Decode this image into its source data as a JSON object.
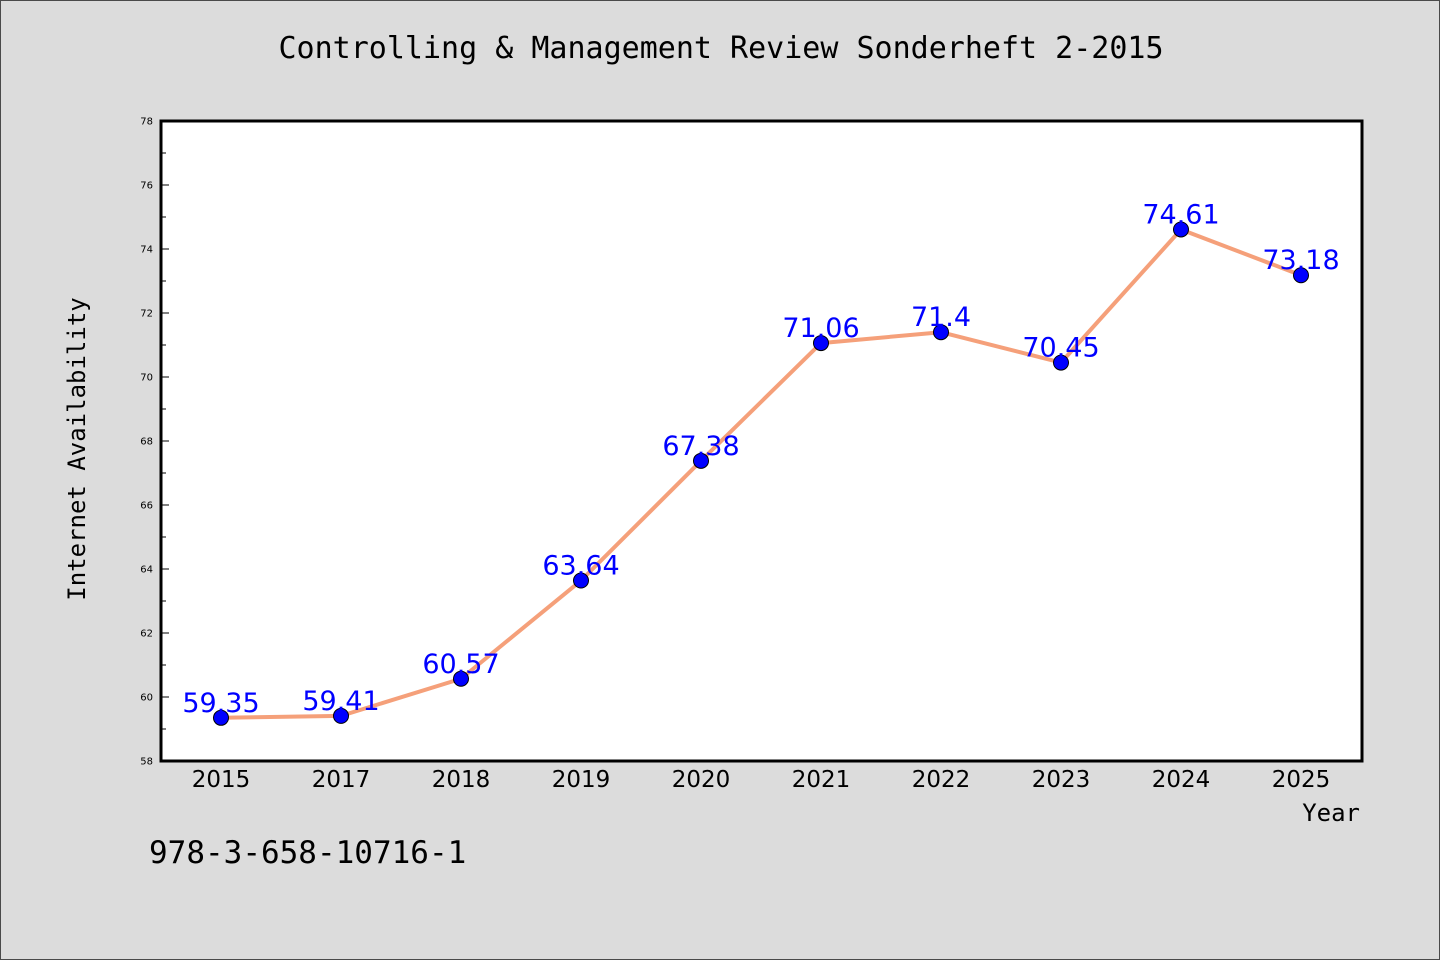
{
  "header": {
    "title": "Controlling & Management Review Sonderheft 2-2015"
  },
  "footer": {
    "isbn": "978-3-658-10716-1"
  },
  "chart_data": {
    "type": "line",
    "title": "Controlling & Management Review Sonderheft 2-2015",
    "xlabel": "Year",
    "ylabel": "Internet Availability",
    "categories": [
      "2015",
      "2017",
      "2018",
      "2019",
      "2020",
      "2021",
      "2022",
      "2023",
      "2024",
      "2025"
    ],
    "series": [
      {
        "values": [
          59.35,
          59.41,
          60.57,
          63.64,
          67.38,
          71.06,
          71.4,
          70.45,
          74.61,
          73.18
        ],
        "data_labels": [
          "59.35",
          "59.41",
          "60.57",
          "63.64",
          "67.38",
          "71.06",
          "71.4",
          "70.45",
          "74.61",
          "73.18"
        ],
        "line_color": "#f5a07a",
        "marker_color": "#0000ff"
      }
    ],
    "ylim": [
      58,
      78
    ],
    "yticks": [
      "58",
      "60",
      "62",
      "64",
      "66",
      "68",
      "70",
      "72",
      "74",
      "76",
      "78"
    ],
    "grid": false,
    "legend": "none",
    "colors": {
      "background": "#dcdcdc",
      "plot_background": "#ffffff",
      "data_label": "#0000ff"
    }
  }
}
